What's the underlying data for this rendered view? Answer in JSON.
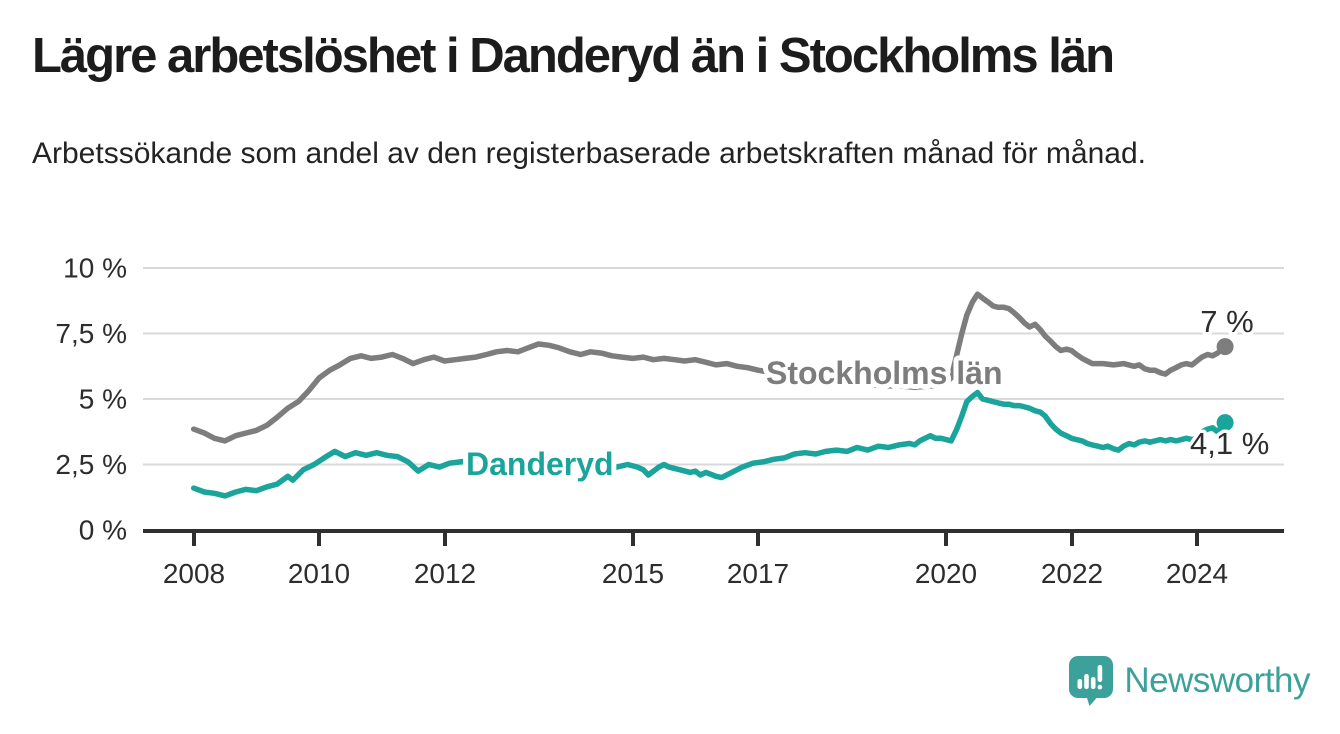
{
  "header": {
    "title": "Lägre arbetslöshet i Danderyd än i Stockholms län",
    "subtitle": "Arbetssökande som andel av den registerbaserade arbetskraften månad för månad."
  },
  "chart_data": {
    "type": "line",
    "unit": "%",
    "grid": "horizontal",
    "legend_position": "inline-labels-on-lines",
    "x_range": [
      2007.2,
      2025.4
    ],
    "y_range": [
      0,
      10
    ],
    "x_axis": {
      "ticks": [
        {
          "value": 2008,
          "label": "2008"
        },
        {
          "value": 2010,
          "label": "2010"
        },
        {
          "value": 2012,
          "label": "2012"
        },
        {
          "value": 2015,
          "label": "2015"
        },
        {
          "value": 2017,
          "label": "2017"
        },
        {
          "value": 2020,
          "label": "2020"
        },
        {
          "value": 2022,
          "label": "2022"
        },
        {
          "value": 2024,
          "label": "2024"
        }
      ]
    },
    "y_axis": {
      "ticks": [
        {
          "value": 10,
          "label": "10 %"
        },
        {
          "value": 7.5,
          "label": "7,5 %"
        },
        {
          "value": 5,
          "label": "5 %"
        },
        {
          "value": 2.5,
          "label": "2,5 %"
        },
        {
          "value": 0,
          "label": "0 %"
        }
      ]
    },
    "series": [
      {
        "name": "Stockholms län",
        "color": "#7d7d7d",
        "end_label": "7 %",
        "end_value": 7.0,
        "points": [
          [
            2008.0,
            3.85
          ],
          [
            2008.17,
            3.7
          ],
          [
            2008.33,
            3.5
          ],
          [
            2008.5,
            3.4
          ],
          [
            2008.67,
            3.6
          ],
          [
            2008.83,
            3.7
          ],
          [
            2009.0,
            3.8
          ],
          [
            2009.17,
            4.0
          ],
          [
            2009.33,
            4.3
          ],
          [
            2009.5,
            4.65
          ],
          [
            2009.67,
            4.9
          ],
          [
            2009.83,
            5.3
          ],
          [
            2010.0,
            5.8
          ],
          [
            2010.17,
            6.1
          ],
          [
            2010.33,
            6.3
          ],
          [
            2010.5,
            6.55
          ],
          [
            2010.67,
            6.65
          ],
          [
            2010.83,
            6.55
          ],
          [
            2011.0,
            6.6
          ],
          [
            2011.17,
            6.7
          ],
          [
            2011.33,
            6.55
          ],
          [
            2011.5,
            6.35
          ],
          [
            2011.67,
            6.5
          ],
          [
            2011.83,
            6.6
          ],
          [
            2012.0,
            6.45
          ],
          [
            2012.17,
            6.5
          ],
          [
            2012.33,
            6.55
          ],
          [
            2012.5,
            6.6
          ],
          [
            2012.67,
            6.7
          ],
          [
            2012.83,
            6.8
          ],
          [
            2013.0,
            6.85
          ],
          [
            2013.17,
            6.8
          ],
          [
            2013.33,
            6.95
          ],
          [
            2013.5,
            7.1
          ],
          [
            2013.67,
            7.05
          ],
          [
            2013.83,
            6.95
          ],
          [
            2014.0,
            6.8
          ],
          [
            2014.17,
            6.7
          ],
          [
            2014.33,
            6.8
          ],
          [
            2014.5,
            6.75
          ],
          [
            2014.67,
            6.65
          ],
          [
            2014.83,
            6.6
          ],
          [
            2015.0,
            6.55
          ],
          [
            2015.17,
            6.6
          ],
          [
            2015.33,
            6.5
          ],
          [
            2015.5,
            6.55
          ],
          [
            2015.67,
            6.5
          ],
          [
            2015.83,
            6.45
          ],
          [
            2016.0,
            6.5
          ],
          [
            2016.17,
            6.4
          ],
          [
            2016.33,
            6.3
          ],
          [
            2016.5,
            6.35
          ],
          [
            2016.67,
            6.25
          ],
          [
            2016.83,
            6.2
          ],
          [
            2017.0,
            6.1
          ],
          [
            2017.25,
            6.0
          ],
          [
            2017.5,
            5.9
          ],
          [
            2017.75,
            5.8
          ],
          [
            2018.0,
            5.7
          ],
          [
            2018.25,
            5.65
          ],
          [
            2018.5,
            5.6
          ],
          [
            2018.75,
            5.55
          ],
          [
            2019.0,
            5.5
          ],
          [
            2019.25,
            5.5
          ],
          [
            2019.5,
            5.45
          ],
          [
            2019.75,
            5.5
          ],
          [
            2019.92,
            5.5
          ],
          [
            2020.08,
            5.8
          ],
          [
            2020.17,
            6.7
          ],
          [
            2020.25,
            7.5
          ],
          [
            2020.33,
            8.2
          ],
          [
            2020.42,
            8.7
          ],
          [
            2020.5,
            9.0
          ],
          [
            2020.58,
            8.85
          ],
          [
            2020.67,
            8.7
          ],
          [
            2020.75,
            8.55
          ],
          [
            2020.83,
            8.5
          ],
          [
            2020.92,
            8.5
          ],
          [
            2021.0,
            8.45
          ],
          [
            2021.08,
            8.3
          ],
          [
            2021.17,
            8.1
          ],
          [
            2021.25,
            7.9
          ],
          [
            2021.33,
            7.75
          ],
          [
            2021.42,
            7.85
          ],
          [
            2021.5,
            7.65
          ],
          [
            2021.58,
            7.4
          ],
          [
            2021.67,
            7.2
          ],
          [
            2021.75,
            7.0
          ],
          [
            2021.83,
            6.85
          ],
          [
            2021.92,
            6.9
          ],
          [
            2022.0,
            6.85
          ],
          [
            2022.08,
            6.7
          ],
          [
            2022.17,
            6.55
          ],
          [
            2022.25,
            6.45
          ],
          [
            2022.33,
            6.35
          ],
          [
            2022.5,
            6.35
          ],
          [
            2022.67,
            6.3
          ],
          [
            2022.83,
            6.35
          ],
          [
            2023.0,
            6.25
          ],
          [
            2023.08,
            6.3
          ],
          [
            2023.17,
            6.15
          ],
          [
            2023.25,
            6.1
          ],
          [
            2023.33,
            6.1
          ],
          [
            2023.42,
            6.0
          ],
          [
            2023.5,
            5.95
          ],
          [
            2023.58,
            6.1
          ],
          [
            2023.67,
            6.2
          ],
          [
            2023.75,
            6.3
          ],
          [
            2023.83,
            6.35
          ],
          [
            2023.92,
            6.3
          ],
          [
            2024.0,
            6.45
          ],
          [
            2024.08,
            6.6
          ],
          [
            2024.17,
            6.7
          ],
          [
            2024.25,
            6.65
          ],
          [
            2024.33,
            6.75
          ],
          [
            2024.45,
            7.0
          ]
        ]
      },
      {
        "name": "Danderyd",
        "color": "#1aa49b",
        "end_label": "4,1 %",
        "end_value": 4.1,
        "points": [
          [
            2008.0,
            1.6
          ],
          [
            2008.17,
            1.45
          ],
          [
            2008.33,
            1.4
          ],
          [
            2008.5,
            1.3
          ],
          [
            2008.67,
            1.45
          ],
          [
            2008.83,
            1.55
          ],
          [
            2009.0,
            1.5
          ],
          [
            2009.17,
            1.65
          ],
          [
            2009.33,
            1.75
          ],
          [
            2009.5,
            2.05
          ],
          [
            2009.58,
            1.9
          ],
          [
            2009.75,
            2.3
          ],
          [
            2009.92,
            2.5
          ],
          [
            2010.08,
            2.75
          ],
          [
            2010.25,
            3.0
          ],
          [
            2010.42,
            2.8
          ],
          [
            2010.58,
            2.95
          ],
          [
            2010.75,
            2.85
          ],
          [
            2010.92,
            2.95
          ],
          [
            2011.08,
            2.85
          ],
          [
            2011.25,
            2.8
          ],
          [
            2011.42,
            2.6
          ],
          [
            2011.58,
            2.25
          ],
          [
            2011.75,
            2.5
          ],
          [
            2011.92,
            2.4
          ],
          [
            2012.08,
            2.55
          ],
          [
            2012.25,
            2.6
          ],
          [
            2012.42,
            2.65
          ],
          [
            2012.58,
            2.6
          ],
          [
            2012.75,
            2.65
          ],
          [
            2012.92,
            2.6
          ],
          [
            2013.08,
            2.65
          ],
          [
            2013.25,
            2.6
          ],
          [
            2013.42,
            2.65
          ],
          [
            2013.58,
            2.55
          ],
          [
            2013.75,
            2.6
          ],
          [
            2013.92,
            2.5
          ],
          [
            2014.08,
            2.55
          ],
          [
            2014.25,
            2.45
          ],
          [
            2014.42,
            2.5
          ],
          [
            2014.58,
            2.45
          ],
          [
            2014.75,
            2.4
          ],
          [
            2014.92,
            2.5
          ],
          [
            2015.08,
            2.4
          ],
          [
            2015.17,
            2.3
          ],
          [
            2015.25,
            2.1
          ],
          [
            2015.42,
            2.4
          ],
          [
            2015.5,
            2.5
          ],
          [
            2015.58,
            2.4
          ],
          [
            2015.75,
            2.3
          ],
          [
            2015.92,
            2.2
          ],
          [
            2016.0,
            2.25
          ],
          [
            2016.08,
            2.1
          ],
          [
            2016.17,
            2.2
          ],
          [
            2016.33,
            2.05
          ],
          [
            2016.42,
            2.0
          ],
          [
            2016.58,
            2.2
          ],
          [
            2016.75,
            2.4
          ],
          [
            2016.92,
            2.55
          ],
          [
            2017.08,
            2.6
          ],
          [
            2017.25,
            2.7
          ],
          [
            2017.42,
            2.75
          ],
          [
            2017.58,
            2.9
          ],
          [
            2017.75,
            2.95
          ],
          [
            2017.92,
            2.9
          ],
          [
            2018.08,
            3.0
          ],
          [
            2018.25,
            3.05
          ],
          [
            2018.42,
            3.0
          ],
          [
            2018.58,
            3.15
          ],
          [
            2018.75,
            3.05
          ],
          [
            2018.92,
            3.2
          ],
          [
            2019.08,
            3.15
          ],
          [
            2019.25,
            3.25
          ],
          [
            2019.42,
            3.3
          ],
          [
            2019.5,
            3.25
          ],
          [
            2019.58,
            3.4
          ],
          [
            2019.75,
            3.6
          ],
          [
            2019.83,
            3.5
          ],
          [
            2019.92,
            3.5
          ],
          [
            2020.08,
            3.4
          ],
          [
            2020.17,
            3.85
          ],
          [
            2020.25,
            4.35
          ],
          [
            2020.33,
            4.9
          ],
          [
            2020.42,
            5.1
          ],
          [
            2020.5,
            5.25
          ],
          [
            2020.58,
            5.0
          ],
          [
            2020.67,
            4.95
          ],
          [
            2020.75,
            4.9
          ],
          [
            2020.83,
            4.85
          ],
          [
            2020.92,
            4.8
          ],
          [
            2021.0,
            4.8
          ],
          [
            2021.08,
            4.75
          ],
          [
            2021.17,
            4.75
          ],
          [
            2021.25,
            4.7
          ],
          [
            2021.33,
            4.65
          ],
          [
            2021.42,
            4.55
          ],
          [
            2021.5,
            4.5
          ],
          [
            2021.58,
            4.35
          ],
          [
            2021.67,
            4.05
          ],
          [
            2021.75,
            3.85
          ],
          [
            2021.83,
            3.7
          ],
          [
            2021.92,
            3.6
          ],
          [
            2022.0,
            3.5
          ],
          [
            2022.08,
            3.45
          ],
          [
            2022.17,
            3.4
          ],
          [
            2022.25,
            3.3
          ],
          [
            2022.33,
            3.25
          ],
          [
            2022.42,
            3.2
          ],
          [
            2022.5,
            3.15
          ],
          [
            2022.58,
            3.2
          ],
          [
            2022.67,
            3.1
          ],
          [
            2022.75,
            3.05
          ],
          [
            2022.83,
            3.2
          ],
          [
            2022.92,
            3.3
          ],
          [
            2023.0,
            3.25
          ],
          [
            2023.08,
            3.35
          ],
          [
            2023.17,
            3.4
          ],
          [
            2023.25,
            3.35
          ],
          [
            2023.33,
            3.4
          ],
          [
            2023.42,
            3.45
          ],
          [
            2023.5,
            3.4
          ],
          [
            2023.58,
            3.45
          ],
          [
            2023.67,
            3.4
          ],
          [
            2023.75,
            3.45
          ],
          [
            2023.83,
            3.5
          ],
          [
            2023.92,
            3.45
          ],
          [
            2024.0,
            3.5
          ],
          [
            2024.08,
            3.75
          ],
          [
            2024.17,
            3.85
          ],
          [
            2024.25,
            3.9
          ],
          [
            2024.33,
            3.75
          ],
          [
            2024.45,
            4.1
          ]
        ]
      }
    ]
  },
  "footer": {
    "brand": "Newsworthy",
    "brand_color": "#3da19b",
    "logo_icon": "speech-bubble-bar-chart-icon"
  }
}
